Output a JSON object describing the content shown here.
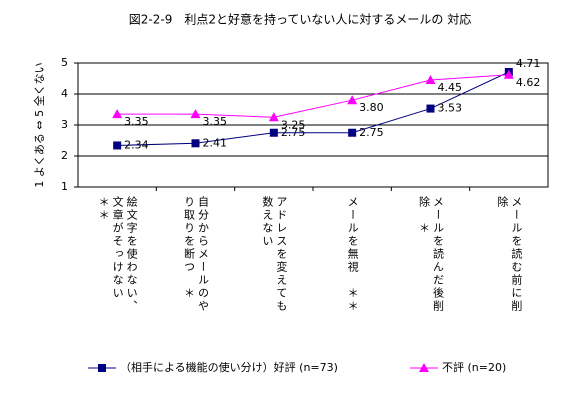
{
  "chart_data": {
    "type": "line",
    "title": "図2-2-9　利点2と好意を持っていない人に対するメールの 対応",
    "y_label": "1 よくある ⇔ 5 全くない",
    "categories": [
      "絵文字を使わない、文章がそっけない　＊＊",
      "自分からメールのやり取りを断つ　＊",
      "アドレスを変えても数えない",
      "メールを無視　＊＊",
      "メールを読んだ後削除　＊",
      "メールを読む前に削除"
    ],
    "series": [
      {
        "name": "（相手による機能の使い分け）好評 (n=73)",
        "color": "#000080",
        "marker": "square",
        "values": [
          2.34,
          2.41,
          2.75,
          2.75,
          3.53,
          4.71
        ],
        "value_labels": [
          "2.34",
          "2.41",
          "2.75",
          "2.75",
          "3.53",
          "4.71"
        ]
      },
      {
        "name": "不評 (n=20)",
        "color": "#ff00ff",
        "marker": "triangle",
        "values": [
          3.35,
          3.35,
          3.25,
          3.8,
          4.45,
          4.62
        ],
        "value_labels": [
          "3.35",
          "3.35",
          "3.25",
          "3.80",
          "4.45",
          "4.62"
        ]
      }
    ],
    "ylim": [
      1,
      5
    ],
    "yticks": [
      1,
      2,
      3,
      4,
      5
    ],
    "grid": true,
    "legend": "bottom"
  }
}
